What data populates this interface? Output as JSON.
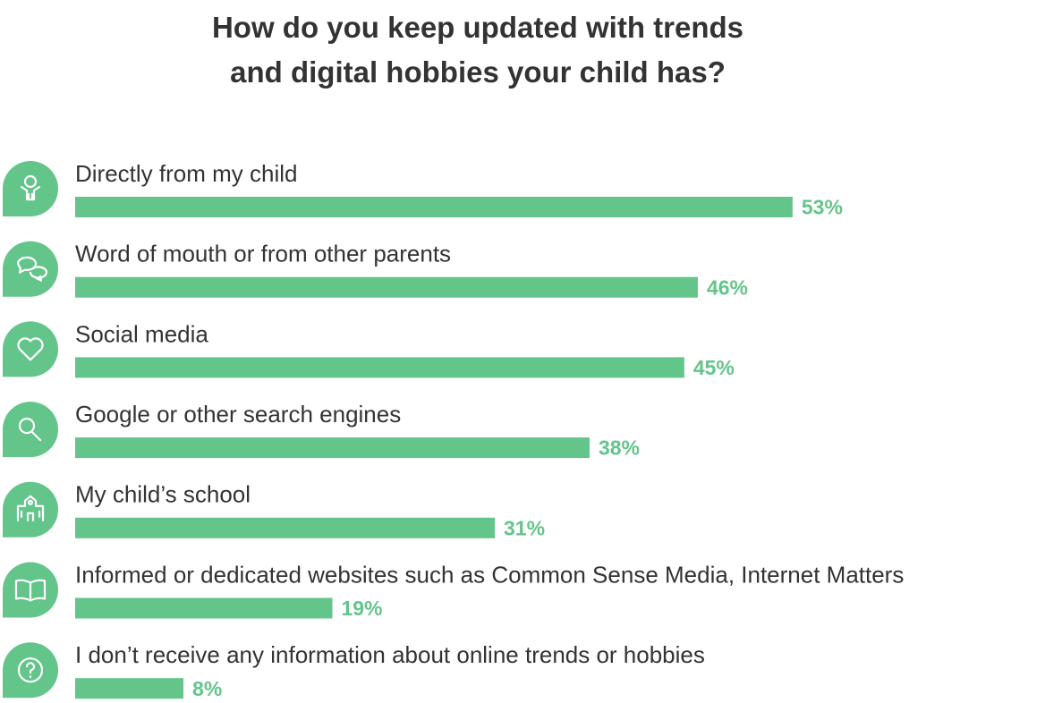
{
  "chart_data": {
    "type": "bar",
    "orientation": "horizontal",
    "title": "How do you keep updated with trends and digital hobbies your child has?",
    "categories": [
      "Directly from my child",
      "Word of mouth or from other parents",
      "Social media",
      "Google or other search engines",
      "My child’s school",
      "Informed or dedicated websites such as Common Sense Media, Internet Matters",
      "I don’t receive any information about online trends or hobbies"
    ],
    "values": [
      53,
      46,
      45,
      38,
      31,
      19,
      8
    ],
    "value_labels": [
      "53%",
      "46%",
      "45%",
      "38%",
      "31%",
      "19%",
      "8%"
    ],
    "color": "#63c58a"
  }
}
